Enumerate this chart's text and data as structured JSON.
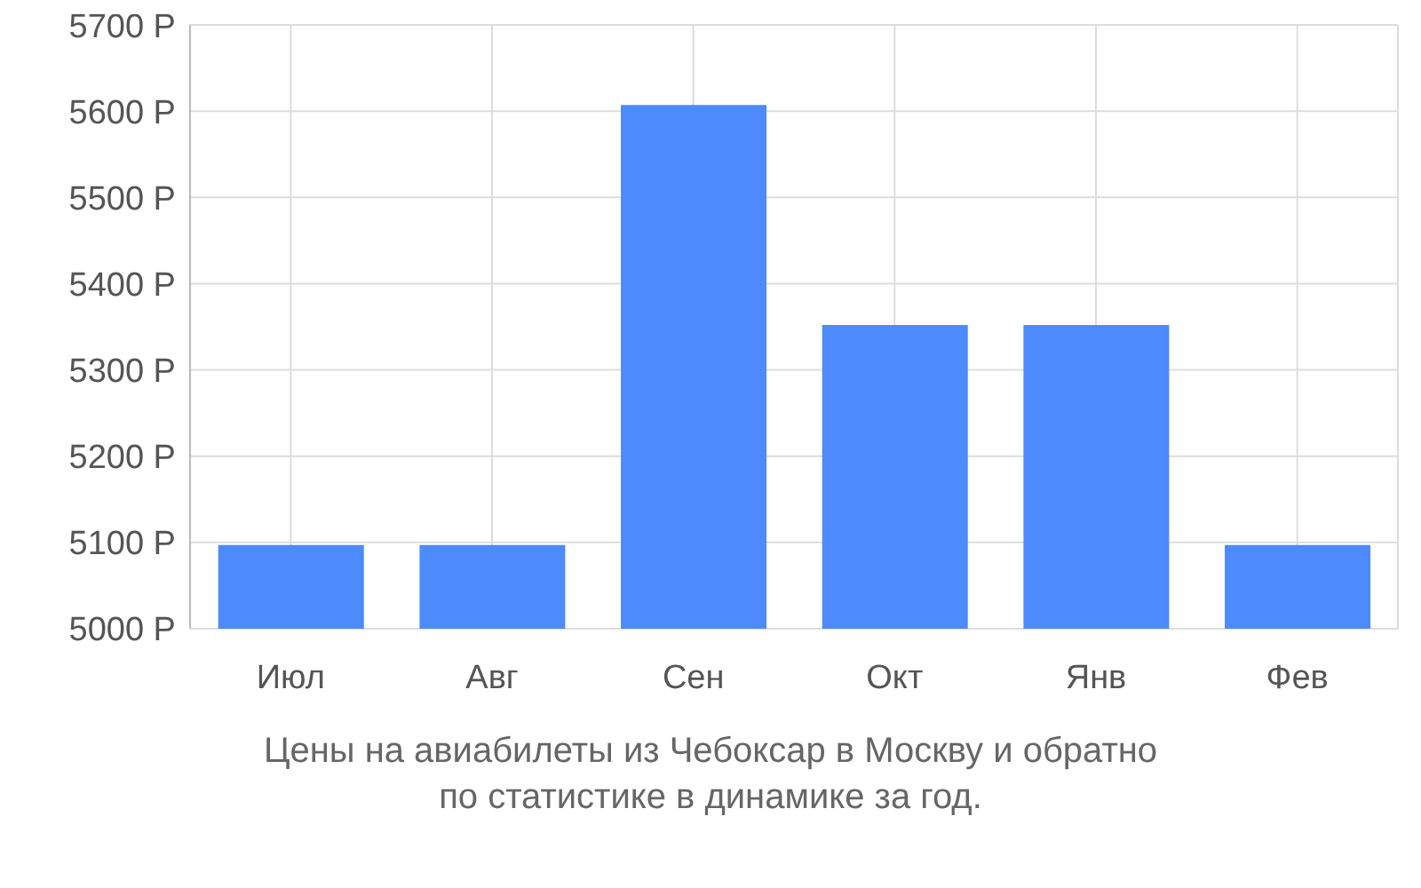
{
  "chart_data": {
    "type": "bar",
    "title": "Цены на авиабилеты из Чебоксар в Москву и обратно\nпо статистике в динамике за год.",
    "categories": [
      "Июл",
      "Авг",
      "Сен",
      "Окт",
      "Янв",
      "Фев"
    ],
    "values": [
      5097,
      5097,
      5607,
      5352,
      5352,
      5097
    ],
    "color": "#4d8afc",
    "ylim": [
      5000,
      5700
    ],
    "yticks": [
      {
        "value": 5000,
        "label": "5000 Р"
      },
      {
        "value": 5100,
        "label": "5100 Р"
      },
      {
        "value": 5200,
        "label": "5200 Р"
      },
      {
        "value": 5300,
        "label": "5300 Р"
      },
      {
        "value": 5400,
        "label": "5400 Р"
      },
      {
        "value": 5500,
        "label": "5500 Р"
      },
      {
        "value": 5600,
        "label": "5600 Р"
      },
      {
        "value": 5700,
        "label": "5700 Р"
      }
    ],
    "grid": true
  }
}
